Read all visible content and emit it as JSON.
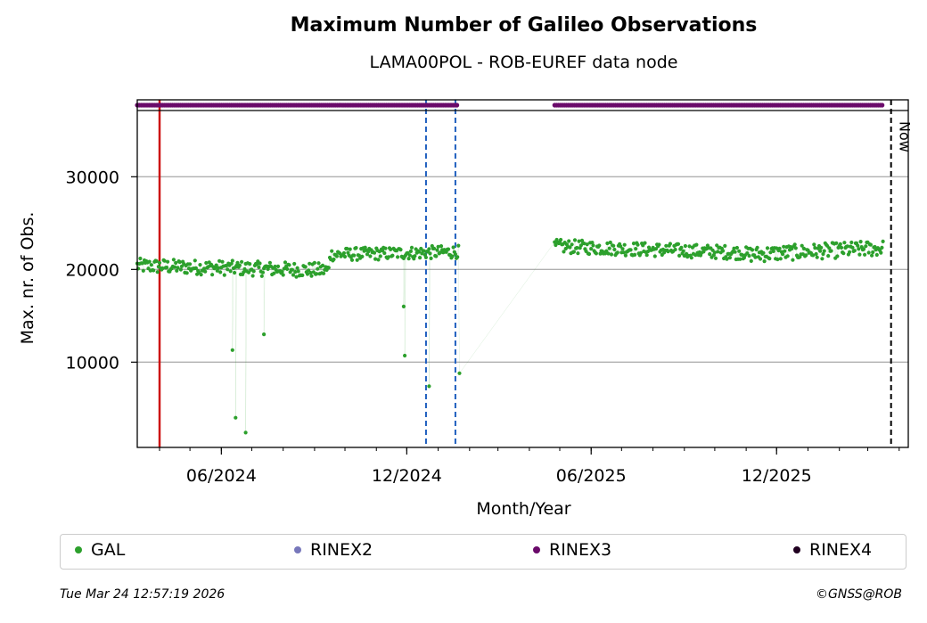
{
  "title": "Maximum Number of Galileo Observations",
  "subtitle": "LAMA00POL - ROB-EUREF data node",
  "timestamp": "Tue Mar 24 12:57:19 2026",
  "copyright": "©GNSS@ROB",
  "now_label": "Now",
  "colors": {
    "GAL": "#2ca02c",
    "RINEX2": "#7777bb",
    "RINEX3": "#6a0a6a",
    "RINEX4": "#200020",
    "red_line": "#cc0000",
    "blue_line": "#1f5fbf"
  },
  "legend": [
    {
      "label": "GAL",
      "color": "#2ca02c"
    },
    {
      "label": "RINEX2",
      "color": "#7777bb"
    },
    {
      "label": "RINEX3",
      "color": "#6a0a6a"
    },
    {
      "label": "RINEX4",
      "color": "#200020"
    }
  ],
  "chart_data": {
    "type": "scatter",
    "xlabel": "Month/Year",
    "ylabel": "Max. nr. of Obs.",
    "xlim": [
      "2024-03-10",
      "2026-04-10"
    ],
    "ylim": [
      800,
      38300
    ],
    "grid": "horizontal",
    "legend_position": "bottom",
    "x_ticks": [
      {
        "date": "2024-06-01",
        "label": "06/2024"
      },
      {
        "date": "2024-12-01",
        "label": "12/2024"
      },
      {
        "date": "2025-06-01",
        "label": "06/2025"
      },
      {
        "date": "2025-12-01",
        "label": "12/2025"
      }
    ],
    "y_ticks": [
      10000,
      20000,
      30000
    ],
    "vertical_lines": [
      {
        "date": "2024-04-01",
        "style": "solid",
        "color": "red"
      },
      {
        "date": "2024-12-20",
        "style": "dashed",
        "color": "blue"
      },
      {
        "date": "2025-01-18",
        "style": "dashed",
        "color": "blue"
      },
      {
        "date": "2026-03-24",
        "style": "dashed",
        "color": "black",
        "label": "Now"
      }
    ],
    "rinex_coverage": [
      {
        "series": "RINEX3",
        "start": "2024-03-10",
        "end": "2025-01-21"
      },
      {
        "series": "RINEX3",
        "start": "2025-04-26",
        "end": "2026-03-16"
      }
    ],
    "segments": [
      {
        "start": "2024-03-10",
        "end": "2024-09-15",
        "v0": 20400,
        "v1": 19900,
        "noise": 800
      },
      {
        "start": "2024-09-16",
        "end": "2025-01-21",
        "v0": 21600,
        "v1": 21900,
        "noise": 700
      },
      {
        "start": "2025-04-26",
        "end": "2025-10-31",
        "v0": 22500,
        "v1": 21800,
        "noise": 750
      },
      {
        "start": "2025-11-01",
        "end": "2026-03-16",
        "v0": 21600,
        "v1": 22300,
        "noise": 850
      }
    ],
    "outliers": [
      {
        "x": "2024-06-12",
        "y": 11300
      },
      {
        "x": "2024-06-15",
        "y": 4000
      },
      {
        "x": "2024-06-25",
        "y": 2400
      },
      {
        "x": "2024-07-13",
        "y": 13000
      },
      {
        "x": "2024-11-28",
        "y": 16000
      },
      {
        "x": "2024-11-29",
        "y": 10700
      },
      {
        "x": "2024-12-23",
        "y": 7400
      },
      {
        "x": "2025-01-22",
        "y": 8800
      }
    ]
  }
}
